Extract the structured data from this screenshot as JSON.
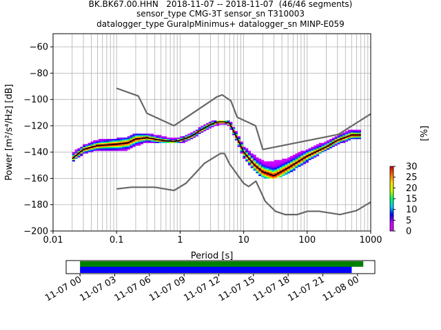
{
  "title": {
    "line1": "BK.BK67.00.HHN   2018-11-07 -- 2018-11-07  (46/46 segments)",
    "line2": "sensor_type CMG-3T sensor_sn T310003",
    "line3": "datalogger_type GuralpMinimus+ datalogger_sn MINP-E059"
  },
  "chart_data": [
    {
      "type": "heatmap",
      "subtype": "probabilistic-power-spectral-density",
      "xlabel": "Period [s]",
      "ylabel": "Power [m²/s⁴/Hz] [dB]",
      "x_scale": "log",
      "xlim": [
        0.01,
        1000
      ],
      "ylim": [
        -200,
        -50
      ],
      "x_ticks": [
        0.01,
        0.1,
        1,
        10,
        100,
        1000
      ],
      "x_tick_labels": [
        "0.01",
        "0.1",
        "1",
        "10",
        "100",
        "1000"
      ],
      "y_ticks": [
        -200,
        -180,
        -160,
        -140,
        -120,
        -100,
        -80,
        -60
      ],
      "y_tick_labels": [
        "−200",
        "−180",
        "−160",
        "−140",
        "−120",
        "−100",
        "−80",
        "−60"
      ],
      "grid": true,
      "colorbar": {
        "label": "[%]",
        "range": [
          0,
          30
        ],
        "ticks": [
          0,
          5,
          10,
          15,
          20,
          25,
          30
        ],
        "tick_labels": [
          "0",
          "5",
          "10",
          "15",
          "20",
          "25",
          "30"
        ],
        "colors": [
          "#ffffff",
          "#cc00ff",
          "#0000ff",
          "#00ccff",
          "#00ff66",
          "#ccff00",
          "#ffdd00",
          "#ff6600",
          "#cc0000"
        ]
      },
      "psd_mean": {
        "x": [
          0.02,
          0.03,
          0.05,
          0.1,
          0.15,
          0.2,
          0.3,
          0.5,
          0.8,
          1.0,
          1.5,
          2.0,
          3.0,
          4.0,
          5.0,
          6.0,
          8.0,
          10.0,
          15.0,
          20.0,
          30.0,
          50.0,
          100.0,
          200.0,
          300.0,
          500.0,
          700.0
        ],
        "y": [
          -145,
          -138,
          -135,
          -134,
          -133,
          -130,
          -129,
          -131,
          -132,
          -131,
          -128,
          -124,
          -119,
          -117,
          -117,
          -118,
          -130,
          -140,
          -150,
          -155,
          -158,
          -152,
          -143,
          -136,
          -131,
          -127,
          -127
        ]
      },
      "psd_band": {
        "x": [
          0.02,
          0.03,
          0.05,
          0.1,
          0.15,
          0.2,
          0.3,
          0.5,
          0.8,
          1.0,
          1.5,
          2.0,
          3.0,
          4.0,
          5.0,
          6.0,
          8.0,
          10.0,
          15.0,
          20.0,
          30.0,
          50.0,
          100.0,
          200.0,
          300.0,
          500.0,
          700.0
        ],
        "upper": [
          -141,
          -135,
          -131,
          -130,
          -129,
          -126,
          -126,
          -128,
          -130,
          -129,
          -126,
          -122,
          -117,
          -116,
          -116,
          -116,
          -126,
          -136,
          -143,
          -147,
          -147,
          -145,
          -138,
          -132,
          -128,
          -123,
          -123
        ],
        "lower": [
          -147,
          -141,
          -138,
          -139,
          -138,
          -135,
          -132,
          -133,
          -133,
          -133,
          -130,
          -126,
          -121,
          -119,
          -118,
          -120,
          -133,
          -144,
          -154,
          -159,
          -160,
          -156,
          -147,
          -138,
          -134,
          -130,
          -129
        ]
      },
      "reference_curves": [
        {
          "x": [
            0.1,
            0.22,
            0.3,
            0.8,
            3.8,
            4.6,
            6.3,
            7.9,
            15.4,
            20.0,
            354.8
          ],
          "y": [
            -91.5,
            -97.4,
            -110.5,
            -120.0,
            -98.0,
            -96.5,
            -101.0,
            -113.5,
            -120.0,
            -138.0,
            -126.0
          ]
        },
        {
          "x": [
            0.1,
            0.17,
            0.4,
            0.8,
            1.24,
            2.4,
            4.3,
            5.0,
            6.0,
            10.0,
            12.0,
            15.6,
            21.9,
            31.6,
            45.0,
            70.0,
            101.0,
            154.0,
            328.0,
            600.0,
            1000.0
          ],
          "y": [
            -168,
            -166.7,
            -166.7,
            -169.2,
            -163.7,
            -148.6,
            -141.1,
            -141.1,
            -149.0,
            -163.8,
            -166.2,
            -162.1,
            -177.5,
            -185.0,
            -187.5,
            -187.5,
            -185.0,
            -185.0,
            -187.5,
            -184.5,
            -178.0
          ]
        },
        {
          "x": [
            300,
            1000
          ],
          "y": [
            -127,
            -111
          ]
        }
      ]
    },
    {
      "type": "bar",
      "subtype": "data-coverage",
      "x_tick_labels": [
        "11-07 00",
        "11-07 03",
        "11-07 06",
        "11-07 09",
        "11-07 12",
        "11-07 15",
        "11-07 18",
        "11-07 21",
        "11-08 00"
      ],
      "x_range_hours": [
        -1.2,
        25.5
      ],
      "series": [
        {
          "start_hour": 0,
          "end_hour": 24.5,
          "color": "#008000"
        },
        {
          "start_hour": 0,
          "end_hour": 23.5,
          "color": "#0000ff"
        }
      ]
    }
  ]
}
